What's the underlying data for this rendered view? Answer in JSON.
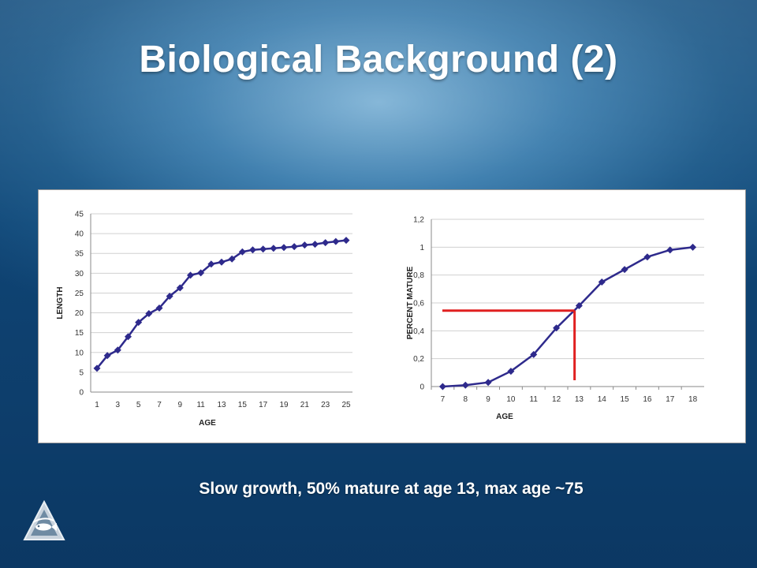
{
  "slide": {
    "title": "Biological Background (2)",
    "caption": "Slow growth, 50% mature at age 13, max age ~75",
    "logo_icon": "fish-triangle-logo"
  },
  "colors": {
    "series": "#2e2a8c",
    "highlight": "#e02020",
    "grid": "#d0d0d0"
  },
  "chart_data": [
    {
      "type": "line",
      "xlabel": "AGE",
      "ylabel": "LENGTH",
      "ylim": [
        0,
        45
      ],
      "yticks": [
        0,
        5,
        10,
        15,
        20,
        25,
        30,
        35,
        40,
        45
      ],
      "ytick_labels": [
        "0",
        "5",
        "10",
        "15",
        "20",
        "25",
        "30",
        "35",
        "40",
        "45"
      ],
      "categories": [
        1,
        2,
        3,
        4,
        5,
        6,
        7,
        8,
        9,
        10,
        11,
        12,
        13,
        14,
        15,
        16,
        17,
        18,
        19,
        20,
        21,
        22,
        23,
        24,
        25
      ],
      "xtick_labels": [
        "1",
        "3",
        "5",
        "7",
        "9",
        "11",
        "13",
        "15",
        "17",
        "19",
        "21",
        "23",
        "25"
      ],
      "grid": true,
      "legend": "none",
      "series": [
        {
          "values": [
            6,
            9.2,
            10.6,
            14.0,
            17.6,
            19.8,
            21.2,
            24.2,
            26.3,
            29.5,
            30.1,
            32.3,
            32.8,
            33.6,
            35.4,
            35.9,
            36.1,
            36.3,
            36.5,
            36.7,
            37.1,
            37.3,
            37.7,
            38.0,
            38.3
          ]
        }
      ]
    },
    {
      "type": "line",
      "xlabel": "AGE",
      "ylabel": "PERCENT MATURE",
      "ylim": [
        0,
        1.2
      ],
      "yticks": [
        0,
        0.2,
        0.4,
        0.6,
        0.8,
        1.0,
        1.2
      ],
      "ytick_labels": [
        "0",
        "0,2",
        "0,4",
        "0,6",
        "0,8",
        "1",
        "1,2"
      ],
      "categories": [
        7,
        8,
        9,
        10,
        11,
        12,
        13,
        14,
        15,
        16,
        17,
        18
      ],
      "xtick_labels": [
        "7",
        "8",
        "9",
        "10",
        "11",
        "12",
        "13",
        "14",
        "15",
        "16",
        "17",
        "18"
      ],
      "grid": true,
      "legend": "none",
      "series": [
        {
          "values": [
            0.0,
            0.01,
            0.03,
            0.11,
            0.23,
            0.42,
            0.58,
            0.75,
            0.84,
            0.93,
            0.98,
            1.0
          ]
        }
      ],
      "annotation": {
        "type": "reference-lines",
        "x": 12.8,
        "y": 0.545
      }
    }
  ]
}
